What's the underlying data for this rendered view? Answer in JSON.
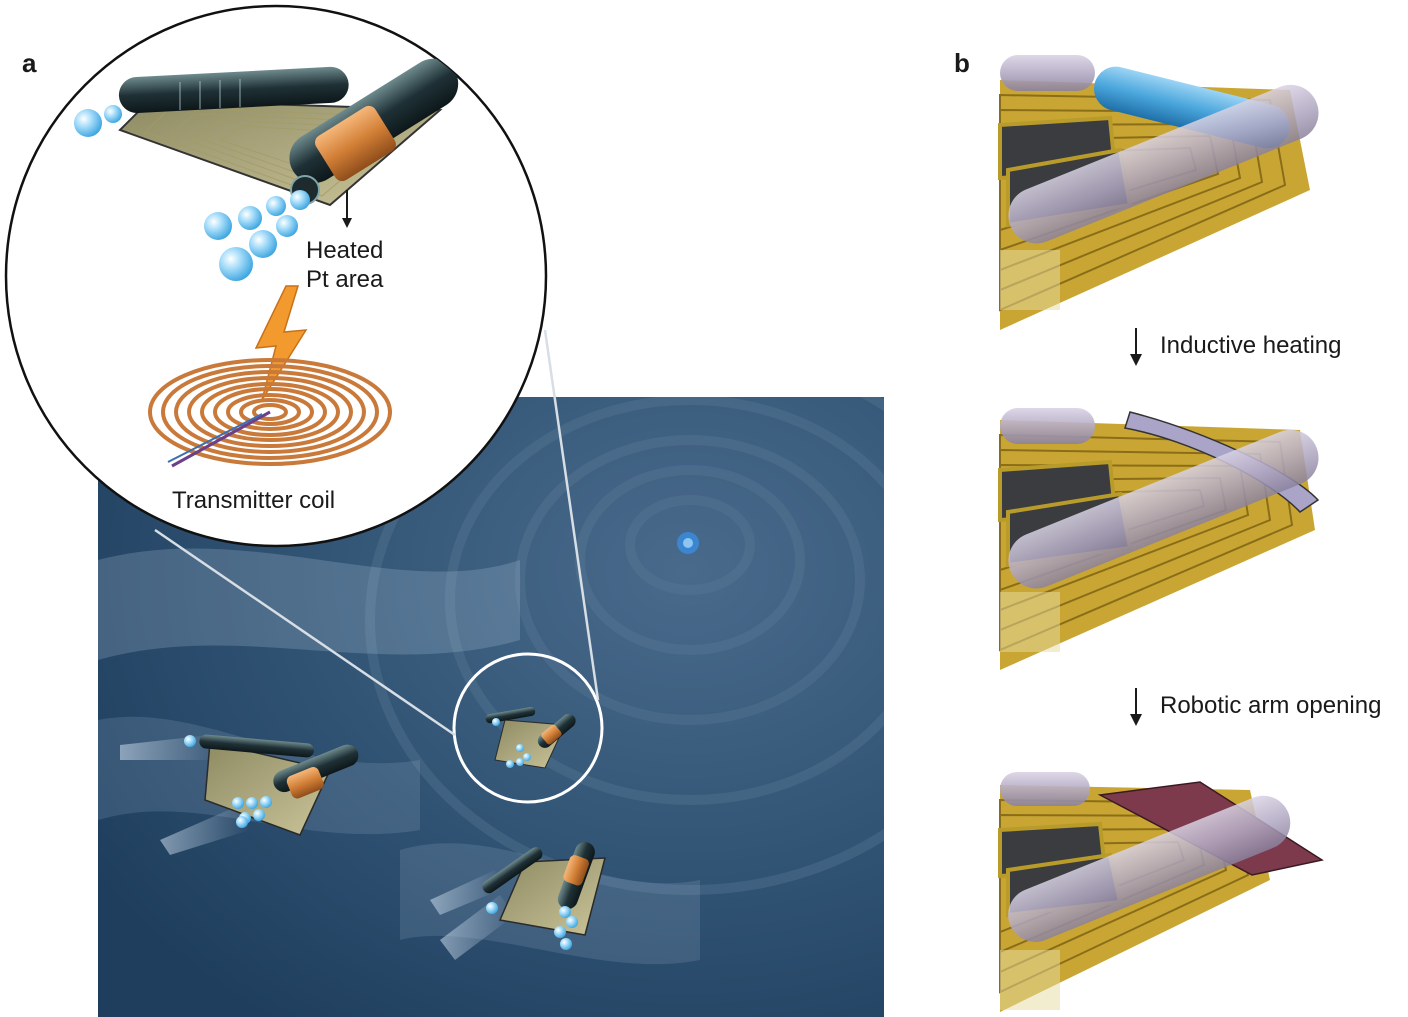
{
  "panel_a": {
    "label": "a",
    "heated_label_line1": "Heated",
    "heated_label_line2": "Pt area",
    "coil_label": "Transmitter coil"
  },
  "panel_b": {
    "label": "b",
    "step1_label": "Inductive heating",
    "step2_label": "Robotic arm opening"
  },
  "colors": {
    "background_blue": "#2f5174",
    "copper": "#c97a3a",
    "gold_trace": "#c9a634",
    "tube_lavender": "#b7aec4",
    "tube_blue": "#4aa6dc",
    "arm_red": "#7c3a4c",
    "bolt_orange": "#f29a2e"
  }
}
